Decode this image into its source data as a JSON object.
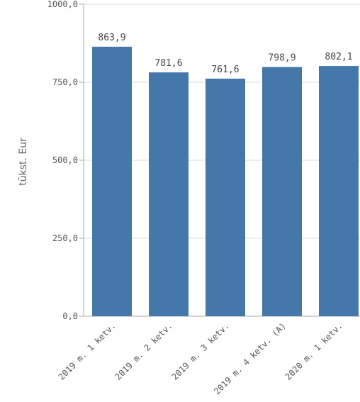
{
  "chart_data": {
    "type": "bar",
    "title": "",
    "xlabel": "",
    "ylabel": "tūkst. Eur",
    "ylim": [
      0,
      1000
    ],
    "y_ticks": [
      {
        "value": 0,
        "label": "0,0"
      },
      {
        "value": 250,
        "label": "250,0"
      },
      {
        "value": 500,
        "label": "500,0"
      },
      {
        "value": 750,
        "label": "750,0"
      },
      {
        "value": 1000,
        "label": "1000,0"
      }
    ],
    "categories": [
      "2019 m. 1 ketv.",
      "2019 m. 2 ketv.",
      "2019 m. 3 ketv.",
      "2019 m. 4 ketv. (A)",
      "2020 m. 1 ketv."
    ],
    "values": [
      863.9,
      781.6,
      761.6,
      798.9,
      802.1
    ],
    "value_labels": [
      "863,9",
      "781,6",
      "761,6",
      "798,9",
      "802,1"
    ],
    "grid": true,
    "bar_color": "#4477aa",
    "grid_color": "#dddddd",
    "axis_color": "#aaaaaa"
  }
}
